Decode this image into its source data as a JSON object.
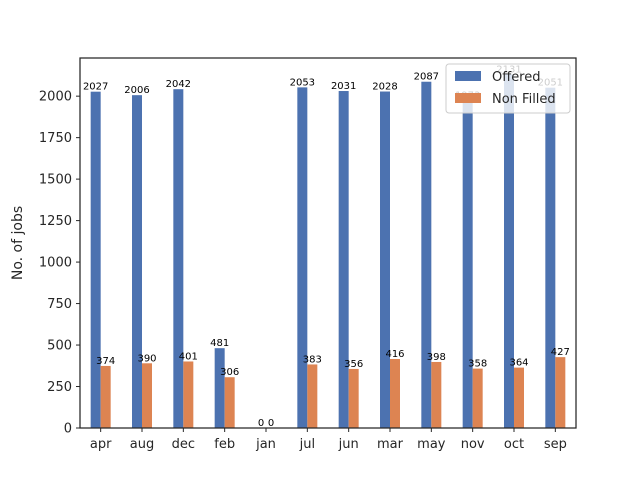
{
  "chart_data": {
    "type": "bar",
    "categories": [
      "apr",
      "aug",
      "dec",
      "feb",
      "jan",
      "jul",
      "jun",
      "mar",
      "may",
      "nov",
      "oct",
      "sep"
    ],
    "series": [
      {
        "name": "Offered",
        "color": "#4c72b0",
        "values": [
          2027,
          2006,
          2042,
          481,
          0,
          2053,
          2031,
          2028,
          2087,
          1973,
          2131,
          2051
        ],
        "labels": [
          "2027",
          "2006",
          "2042",
          "481",
          "0",
          "2053",
          "2031",
          "2028",
          "2087",
          "1973",
          "2131",
          "2051"
        ]
      },
      {
        "name": "Non Filled",
        "color": "#dd8452",
        "values": [
          374,
          390,
          401,
          306,
          0,
          383,
          356,
          416,
          398,
          358,
          364,
          427
        ],
        "labels": [
          "374",
          "390",
          "401",
          "306",
          "0",
          "383",
          "356",
          "416",
          "398",
          "358",
          "364",
          "427"
        ]
      }
    ],
    "xlabel": "",
    "ylabel": "No. of jobs",
    "ylim": [
      0,
      2230
    ],
    "yticks": [
      0,
      250,
      500,
      750,
      1000,
      1250,
      1500,
      1750,
      2000
    ],
    "grid": false,
    "legend": "top-right"
  }
}
